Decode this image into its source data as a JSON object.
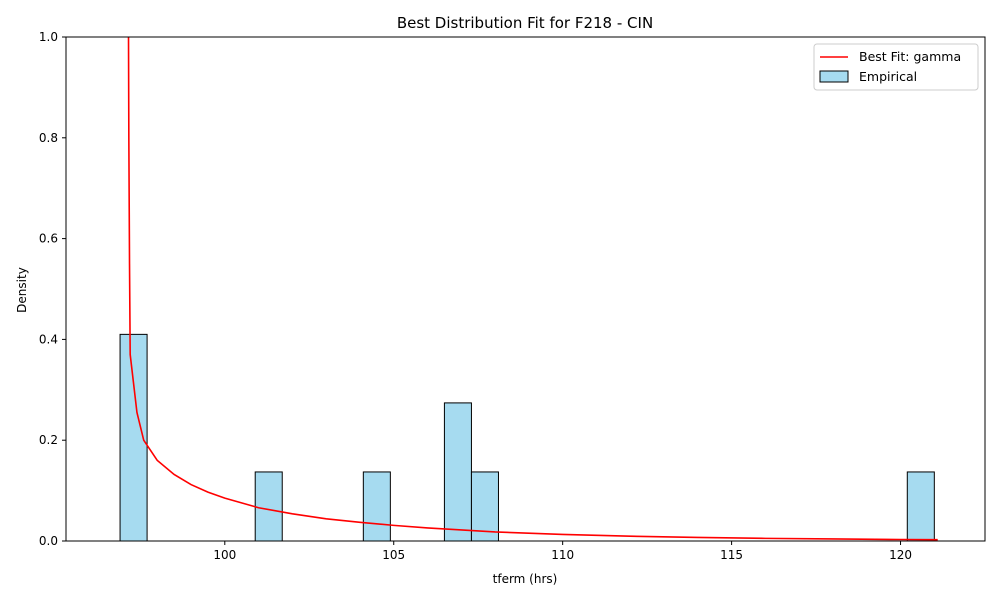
{
  "chart_data": {
    "type": "bar",
    "title": "Best Distribution Fit for F218 - CIN",
    "xlabel": "tferm (hrs)",
    "ylabel": "Density",
    "xlim": [
      95.3,
      122.5
    ],
    "ylim": [
      0,
      1.0
    ],
    "x_ticks": [
      100,
      105,
      110,
      115,
      120
    ],
    "y_ticks": [
      0.0,
      0.2,
      0.4,
      0.6,
      0.8,
      1.0
    ],
    "x_tick_labels": [
      "100",
      "105",
      "110",
      "115",
      "120"
    ],
    "y_tick_labels": [
      "0.0",
      "0.2",
      "0.4",
      "0.6",
      "0.8",
      "1.0"
    ],
    "grid": false,
    "legend_position": "top-right",
    "histogram": {
      "name": "Empirical",
      "color": "#a6dbf0",
      "edge_color": "#000000",
      "bin_start": 96.9,
      "bin_width": 0.8,
      "bins": [
        {
          "x0": 96.9,
          "x1": 97.7,
          "density": 0.41
        },
        {
          "x0": 100.9,
          "x1": 101.7,
          "density": 0.137
        },
        {
          "x0": 104.1,
          "x1": 104.9,
          "density": 0.137
        },
        {
          "x0": 106.5,
          "x1": 107.3,
          "density": 0.274
        },
        {
          "x0": 107.3,
          "x1": 108.1,
          "density": 0.137
        },
        {
          "x0": 120.2,
          "x1": 121.0,
          "density": 0.137
        }
      ]
    },
    "fit_curve": {
      "name": "Best Fit: gamma",
      "color": "#ff0000",
      "points": [
        [
          97.15,
          1.0
        ],
        [
          97.16,
          0.8
        ],
        [
          97.18,
          0.55
        ],
        [
          97.2,
          0.37
        ],
        [
          97.4,
          0.255
        ],
        [
          97.6,
          0.2
        ],
        [
          98.0,
          0.16
        ],
        [
          98.5,
          0.132
        ],
        [
          99.0,
          0.112
        ],
        [
          99.5,
          0.097
        ],
        [
          100.0,
          0.085
        ],
        [
          101.0,
          0.066
        ],
        [
          102.0,
          0.054
        ],
        [
          103.0,
          0.044
        ],
        [
          104.0,
          0.037
        ],
        [
          105.0,
          0.031
        ],
        [
          106.0,
          0.026
        ],
        [
          107.0,
          0.022
        ],
        [
          108.0,
          0.018
        ],
        [
          110.0,
          0.013
        ],
        [
          112.0,
          0.0095
        ],
        [
          114.0,
          0.007
        ],
        [
          116.0,
          0.0052
        ],
        [
          118.0,
          0.004
        ],
        [
          120.0,
          0.003
        ],
        [
          121.1,
          0.0026
        ]
      ]
    },
    "legend": [
      {
        "label": "Best Fit: gamma",
        "kind": "line",
        "color": "#ff0000"
      },
      {
        "label": "Empirical",
        "kind": "patch",
        "color": "#a6dbf0"
      }
    ]
  }
}
